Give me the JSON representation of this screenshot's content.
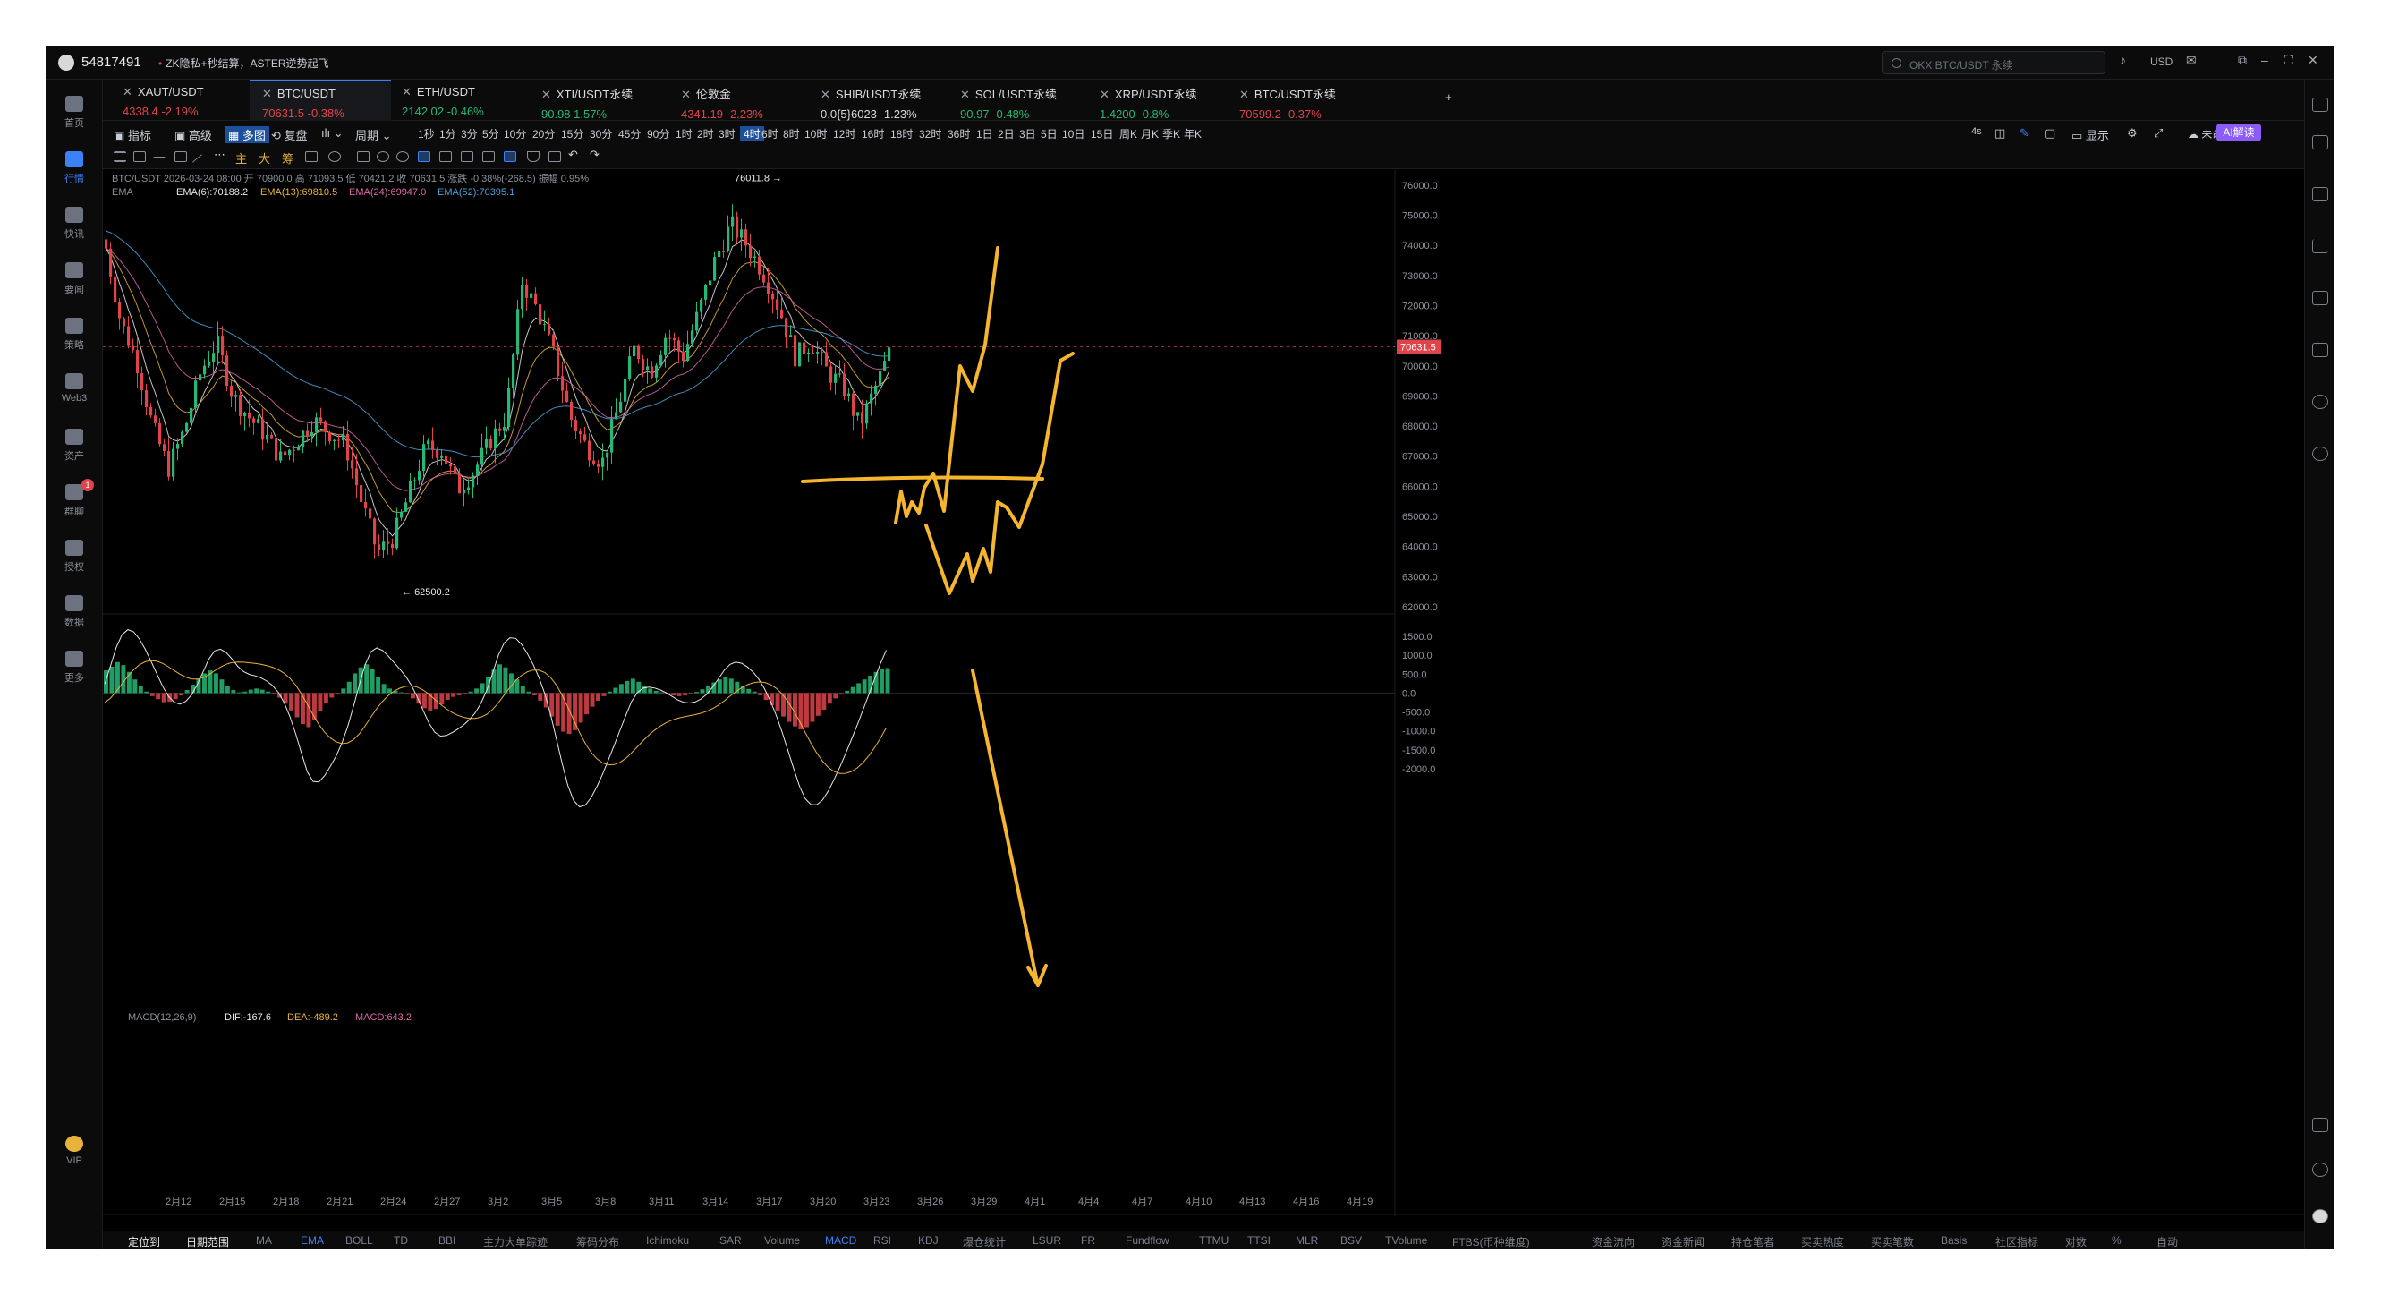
{
  "titlebar": {
    "user_id": "54817491",
    "news": "ZK隐私+秒结算，ASTER逆势起飞",
    "search_placeholder": "OKX BTC/USDT 永续",
    "currency": "USD"
  },
  "leftnav": [
    {
      "label": "首页",
      "icon": "home-icon"
    },
    {
      "label": "行情",
      "icon": "market-chart-icon",
      "active": true
    },
    {
      "label": "快讯",
      "icon": "flash-news-icon"
    },
    {
      "label": "要闻",
      "icon": "news-icon"
    },
    {
      "label": "策略",
      "icon": "strategy-icon"
    },
    {
      "label": "Web3",
      "icon": "web3-icon"
    },
    {
      "label": "资产",
      "icon": "wallet-icon"
    },
    {
      "label": "群聊",
      "icon": "chat-icon",
      "badge": "1"
    },
    {
      "label": "授权",
      "icon": "authorize-icon"
    },
    {
      "label": "数据",
      "icon": "data-icon"
    },
    {
      "label": "更多",
      "icon": "more-icon"
    },
    {
      "label": "VIP",
      "icon": "vip-icon"
    }
  ],
  "tabs": [
    {
      "name": "XAUT/USDT",
      "price": "4338.4",
      "change": "-2.19%",
      "dir": "down"
    },
    {
      "name": "BTC/USDT",
      "price": "70631.5",
      "change": "-0.38%",
      "dir": "down",
      "active": true
    },
    {
      "name": "ETH/USDT",
      "price": "2142.02",
      "change": "-0.46%",
      "dir": "up"
    },
    {
      "name": "XTI/USDT永续",
      "price": "90.98",
      "change": "1.57%",
      "dir": "up"
    },
    {
      "name": "伦敦金",
      "price": "4341.19",
      "change": "-2.23%",
      "dir": "down"
    },
    {
      "name": "SHIB/USDT永续",
      "price": "0.0{5}6023",
      "change": "-1.23%",
      "dir": "neut"
    },
    {
      "name": "SOL/USDT永续",
      "price": "90.97",
      "change": "-0.48%",
      "dir": "up"
    },
    {
      "name": "XRP/USDT永续",
      "price": "1.4200",
      "change": "-0.8%",
      "dir": "up"
    },
    {
      "name": "BTC/USDT永续",
      "price": "70599.2",
      "change": "-0.37%",
      "dir": "down"
    }
  ],
  "toolbar": {
    "left": [
      "指标",
      "高级",
      "多图",
      "复盘",
      "周期"
    ],
    "intervals": [
      "1秒",
      "1分",
      "3分",
      "5分",
      "10分",
      "20分",
      "15分",
      "30分",
      "45分",
      "90分",
      "1时",
      "2时",
      "3时",
      "4时",
      "6时",
      "8时",
      "10时",
      "12时",
      "16时",
      "18时",
      "32时",
      "36时",
      "1日",
      "2日",
      "3日",
      "5日",
      "10日",
      "15日",
      "周K",
      "月K",
      "季K",
      "年K"
    ],
    "selected_interval": "4时",
    "right": [
      "4s",
      "显示",
      "未命名",
      "AI解读"
    ],
    "draw_labels": [
      "主",
      "大",
      "筹"
    ]
  },
  "info": {
    "line1": "BTC/USDT  2026-03-24 08:00  开 70900.0  高 71093.5  低 70421.2  收 70631.5  涨跌 -0.38%(-268.5)  振幅 0.95%",
    "ema_label": "EMA",
    "ema": [
      "EMA(6):70188.2",
      "EMA(13):69810.5",
      "EMA(24):69947.0",
      "EMA(52):70395.1"
    ],
    "macd_label": "MACD(12,26,9)",
    "macd": [
      "DIF:-167.6",
      "DEA:-489.2",
      "MACD:643.2"
    ]
  },
  "chart_data": {
    "type": "candlestick",
    "symbol": "BTC/USDT",
    "interval": "4时",
    "ylim": [
      62000,
      76500
    ],
    "y_ticks": [
      "76000.0",
      "75000.0",
      "74000.0",
      "73000.0",
      "72000.0",
      "71000.0",
      "70000.0",
      "69000.0",
      "68000.0",
      "67000.0",
      "66000.0",
      "65000.0",
      "64000.0",
      "63000.0",
      "62000.0"
    ],
    "x_ticks": [
      "2月12",
      "2月15",
      "2月18",
      "2月21",
      "2月24",
      "2月27",
      "3月2",
      "3月5",
      "3月8",
      "3月11",
      "3月14",
      "3月17",
      "3月20",
      "3月23",
      "3月26",
      "3月29",
      "4月1",
      "4月4",
      "4月7",
      "4月10",
      "4月13",
      "4月16",
      "4月19"
    ],
    "last_price": "70631.5",
    "high_marker": "76011.8",
    "low_marker": "62500.2",
    "price_path": [
      [
        "2月10",
        74200
      ],
      [
        "2月11",
        71500
      ],
      [
        "2月12",
        70200
      ],
      [
        "2月12",
        68000
      ],
      [
        "2月13",
        66600
      ],
      [
        "2月14",
        67900
      ],
      [
        "2月15",
        69800
      ],
      [
        "2月15",
        70800
      ],
      [
        "2月16",
        69000
      ],
      [
        "2月17",
        68300
      ],
      [
        "2月18",
        67700
      ],
      [
        "2月19",
        66900
      ],
      [
        "2月20",
        67500
      ],
      [
        "2月21",
        68200
      ],
      [
        "2月22",
        67800
      ],
      [
        "2月23",
        67400
      ],
      [
        "2月24",
        65500
      ],
      [
        "2月24",
        63800
      ],
      [
        "2月25",
        64300
      ],
      [
        "2月26",
        65800
      ],
      [
        "2月27",
        67300
      ],
      [
        "2月28",
        67200
      ],
      [
        "3月1",
        65900
      ],
      [
        "3月2",
        66500
      ],
      [
        "3月3",
        67500
      ],
      [
        "3月4",
        68300
      ],
      [
        "3月5",
        72800
      ],
      [
        "3月5",
        71800
      ],
      [
        "3月6",
        70300
      ],
      [
        "3月7",
        68300
      ],
      [
        "3月8",
        67300
      ],
      [
        "3月9",
        66800
      ],
      [
        "3月10",
        68700
      ],
      [
        "3月11",
        70600
      ],
      [
        "3月12",
        69800
      ],
      [
        "3月13",
        71100
      ],
      [
        "3月14",
        70300
      ],
      [
        "3月15",
        71800
      ],
      [
        "3月16",
        73500
      ],
      [
        "3月17",
        74700
      ],
      [
        "3月17",
        74000
      ],
      [
        "3月18",
        73100
      ],
      [
        "3月18",
        71900
      ],
      [
        "3月19",
        70300
      ],
      [
        "3月20",
        70800
      ],
      [
        "3月21",
        69800
      ],
      [
        "3月22",
        69300
      ],
      [
        "3月23",
        68000
      ],
      [
        "3月23",
        69300
      ],
      [
        "3月24",
        70631.5
      ]
    ],
    "ema_series": [
      {
        "name": "EMA(6)",
        "color": "#e8e8e8",
        "value": "70188.2"
      },
      {
        "name": "EMA(13)",
        "color": "#e8b33a",
        "value": "69810.5"
      },
      {
        "name": "EMA(24)",
        "color": "#d86aa8",
        "value": "69947.0"
      },
      {
        "name": "EMA(52)",
        "color": "#4aa3d9",
        "value": "70395.1"
      }
    ],
    "macd": {
      "ylim": [
        -2000,
        1500
      ],
      "y_ticks": [
        "1500.0",
        "1000.0",
        "500.0",
        "0.0",
        "-500.0",
        "-1000.0",
        "-1500.0",
        "-2000.0"
      ],
      "histogram": [
        600,
        700,
        820,
        740,
        560,
        360,
        180,
        40,
        -80,
        -160,
        -240,
        -230,
        -160,
        -60,
        80,
        220,
        380,
        520,
        600,
        520,
        360,
        200,
        80,
        20,
        40,
        90,
        120,
        90,
        40,
        -20,
        -120,
        -280,
        -460,
        -640,
        -820,
        -900,
        -720,
        -480,
        -260,
        -120,
        -40,
        120,
        300,
        520,
        680,
        760,
        640,
        420,
        240,
        120,
        60,
        20,
        -40,
        -140,
        -280,
        -400,
        -460,
        -420,
        -300,
        -180,
        -100,
        -60,
        -20,
        40,
        120,
        260,
        420,
        620,
        760,
        680,
        520,
        360,
        180,
        40,
        -60,
        -200,
        -380,
        -620,
        -860,
        -1020,
        -1080,
        -980,
        -780,
        -560,
        -360,
        -200,
        -80,
        40,
        140,
        240,
        320,
        380,
        300,
        200,
        120,
        60,
        20,
        -20,
        -60,
        -80,
        -60,
        -20,
        30,
        100,
        180,
        280,
        360,
        420,
        380,
        300,
        200,
        110,
        40,
        -60,
        -180,
        -320,
        -460,
        -620,
        -760,
        -880,
        -960,
        -900,
        -760,
        -600,
        -440,
        -280,
        -140,
        -40,
        60,
        160,
        260,
        360,
        460,
        560,
        640,
        660
      ]
    },
    "annotation": "hand-drawn yellow projection lines: horizontal level near 71900, rally scenario up past 76000, and a downward arrow toward 62000"
  },
  "bottom": {
    "items": [
      "定位到",
      "日期范围",
      "MA",
      "EMA",
      "BOLL",
      "TD",
      "BBI",
      "主力大单踪迹",
      "筹码分布",
      "Ichimoku",
      "SAR",
      "Volume",
      "MACD",
      "RSI",
      "KDJ",
      "爆仓统计",
      "LSUR",
      "FR",
      "Fundflow",
      "TTMU",
      "TTSI",
      "MLR",
      "BSV",
      "TVolume",
      "FTBS(币种维度)",
      "资金流向",
      "资金新闻",
      "持仓笔者",
      "买卖热度",
      "买卖笔数",
      "Basis",
      "社区指标",
      "对数",
      "%",
      "自动"
    ],
    "highlighted": [
      "EMA",
      "MACD"
    ]
  },
  "colors": {
    "up": "#25b876",
    "down": "#e0444b",
    "accent": "#3b82f6",
    "annotation": "#f5b52e",
    "price_tag": "#e0444b"
  }
}
